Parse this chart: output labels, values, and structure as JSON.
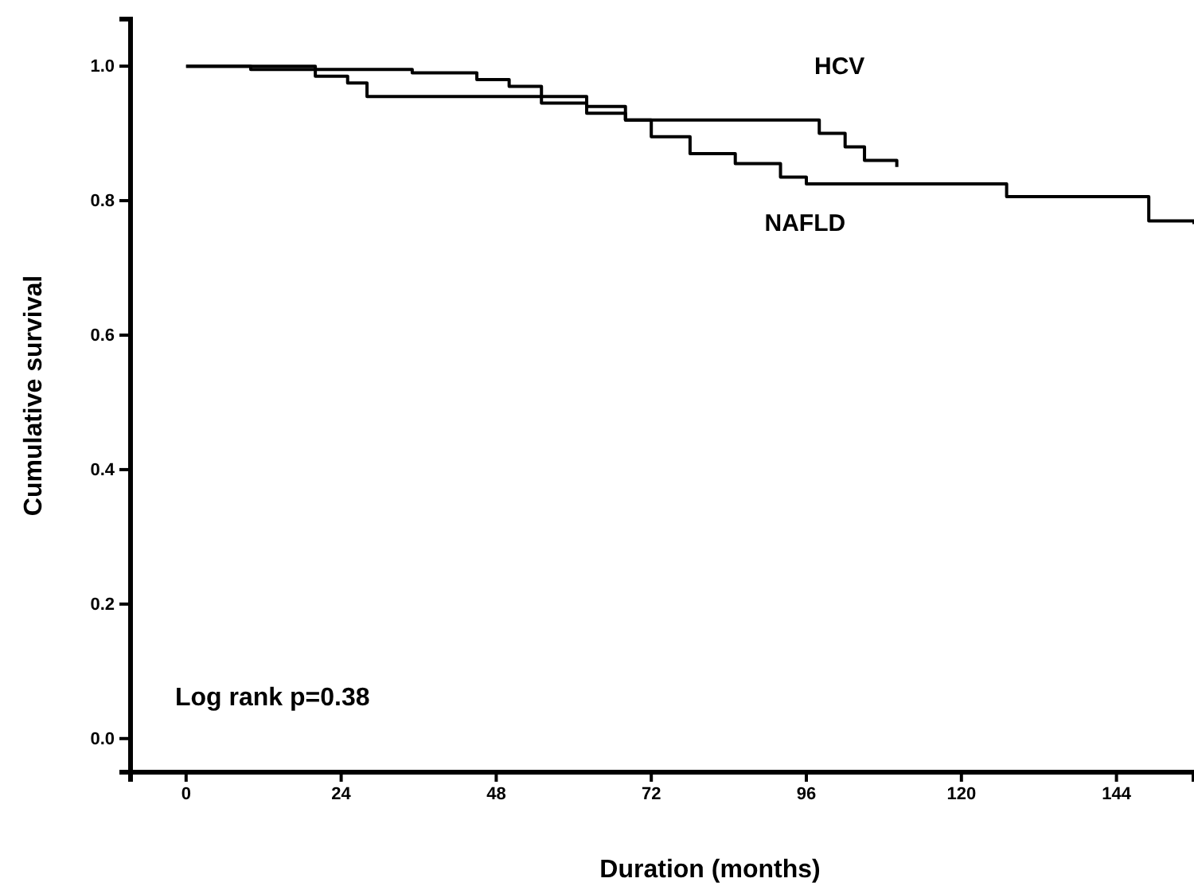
{
  "chart_data": {
    "type": "step",
    "xlabel": "Duration (months)",
    "ylabel": "Cumulative survival",
    "xlim": [
      -8.6,
      156
    ],
    "xticks": [
      0,
      24,
      48,
      72,
      96,
      120,
      144
    ],
    "ylim": [
      -0.05,
      1.07
    ],
    "yticks": [
      {
        "value": 0,
        "label": "0.0"
      },
      {
        "value": 0.2,
        "label": "0.2"
      },
      {
        "value": 0.4,
        "label": "0.4"
      },
      {
        "value": 0.6,
        "label": "0.6"
      },
      {
        "value": 0.8,
        "label": "0.8"
      },
      {
        "value": 1,
        "label": "1.0"
      }
    ],
    "grid": false,
    "legend": false,
    "line_style": "solid",
    "marker": "none",
    "series": [
      {
        "name": "HCV",
        "color": "#000000",
        "x": [
          0,
          10,
          20,
          25,
          28,
          48,
          55,
          62,
          68,
          96,
          98,
          102,
          105,
          110
        ],
        "values": [
          1,
          0.995,
          0.985,
          0.975,
          0.955,
          0.955,
          0.945,
          0.93,
          0.92,
          0.92,
          0.9,
          0.88,
          0.86,
          0.85
        ]
      },
      {
        "name": "NAFLD",
        "color": "#000000",
        "x": [
          0,
          20,
          35,
          45,
          50,
          55,
          62,
          68,
          72,
          78,
          85,
          92,
          96,
          126,
          127,
          148,
          149,
          156
        ],
        "values": [
          1,
          0.995,
          0.99,
          0.98,
          0.97,
          0.955,
          0.94,
          0.92,
          0.895,
          0.87,
          0.855,
          0.835,
          0.825,
          0.825,
          0.806,
          0.806,
          0.77,
          0.765
        ]
      }
    ],
    "annotations": [
      "Log rank p=0.38"
    ]
  }
}
